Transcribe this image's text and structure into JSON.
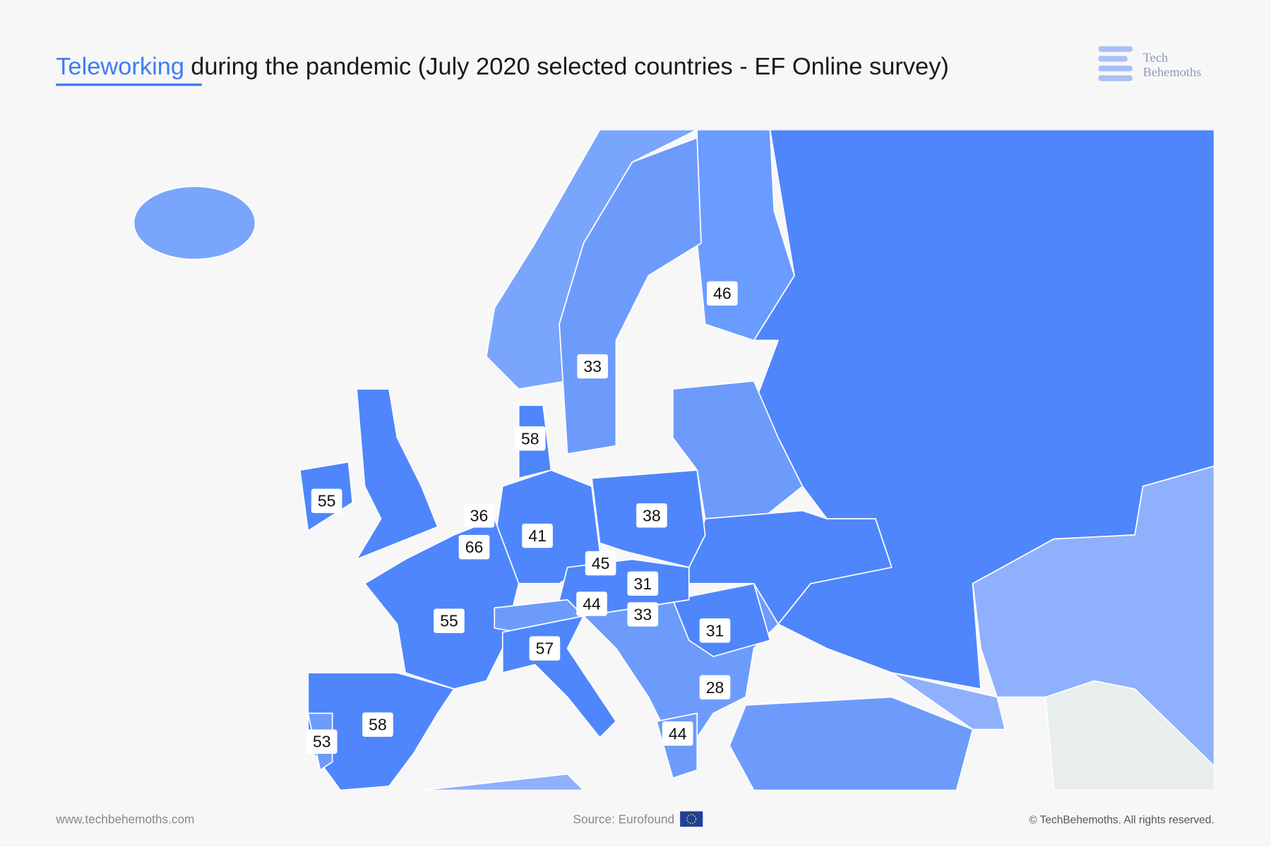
{
  "header": {
    "title_highlight": "Teleworking",
    "title_rest": "during the pandemic (July 2020 selected countries - EF Online survey)",
    "logo": [
      "Tech",
      "Behemoths"
    ]
  },
  "map": {
    "values": [
      46,
      33,
      58,
      55,
      36,
      41,
      38,
      66,
      45,
      31,
      44,
      33,
      31,
      55,
      57,
      28,
      58,
      53,
      44
    ]
  },
  "footer": {
    "website": "www.techbehemoths.com",
    "source": "Source: Eurofound",
    "copyright": "© TechBehemoths. All rights reserved."
  }
}
